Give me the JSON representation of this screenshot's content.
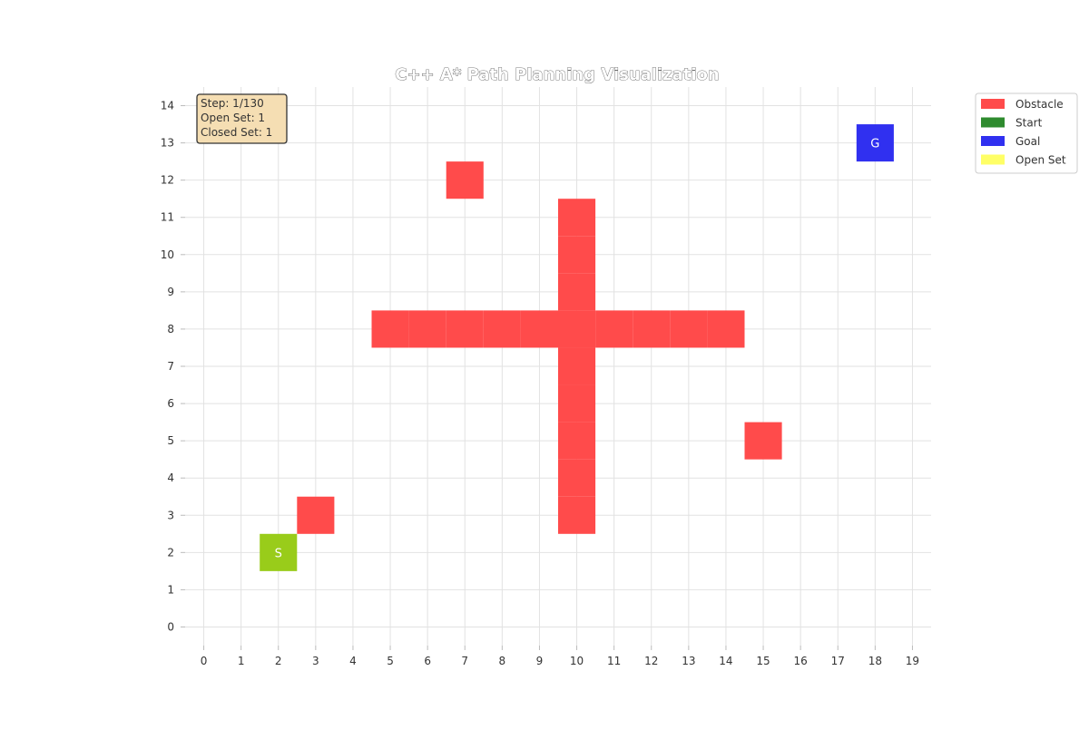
{
  "chart_data": {
    "type": "heatmap",
    "title": "C++ A* Path Planning Visualization",
    "xlabel": "",
    "ylabel": "",
    "xlim": [
      -0.5,
      19.5
    ],
    "ylim": [
      -0.5,
      14.5
    ],
    "x_ticks": [
      0,
      1,
      2,
      3,
      4,
      5,
      6,
      7,
      8,
      9,
      10,
      11,
      12,
      13,
      14,
      15,
      16,
      17,
      18,
      19
    ],
    "y_ticks": [
      0,
      1,
      2,
      3,
      4,
      5,
      6,
      7,
      8,
      9,
      10,
      11,
      12,
      13,
      14
    ],
    "grid": true,
    "obstacles": [
      [
        7,
        12
      ],
      [
        10,
        11
      ],
      [
        10,
        10
      ],
      [
        10,
        9
      ],
      [
        5,
        8
      ],
      [
        6,
        8
      ],
      [
        7,
        8
      ],
      [
        8,
        8
      ],
      [
        9,
        8
      ],
      [
        10,
        8
      ],
      [
        11,
        8
      ],
      [
        12,
        8
      ],
      [
        13,
        8
      ],
      [
        14,
        8
      ],
      [
        10,
        7
      ],
      [
        10,
        6
      ],
      [
        10,
        5
      ],
      [
        10,
        4
      ],
      [
        10,
        3
      ],
      [
        15,
        5
      ],
      [
        3,
        3
      ]
    ],
    "start": {
      "x": 2,
      "y": 2,
      "label": "S"
    },
    "goal": {
      "x": 18,
      "y": 13,
      "label": "G"
    },
    "open_set": [
      [
        2,
        2
      ]
    ],
    "legend": {
      "placement": "outside-top-right",
      "entries": [
        {
          "name": "Obstacle",
          "color": "#ff4b4b"
        },
        {
          "name": "Start",
          "color": "#2e8b2e"
        },
        {
          "name": "Goal",
          "color": "#3030f0"
        },
        {
          "name": "Open Set",
          "color": "#ffff66"
        }
      ]
    },
    "info_box": {
      "lines": [
        "Step: 1/130",
        "Open Set: 1",
        "Closed Set: 1"
      ]
    },
    "colors": {
      "obstacle": "#ff4b4b",
      "start_cell": "#99cc1a",
      "goal_cell": "#3030f0",
      "grid": "#e2e2e2",
      "info_bg": "#f5deb3"
    }
  }
}
